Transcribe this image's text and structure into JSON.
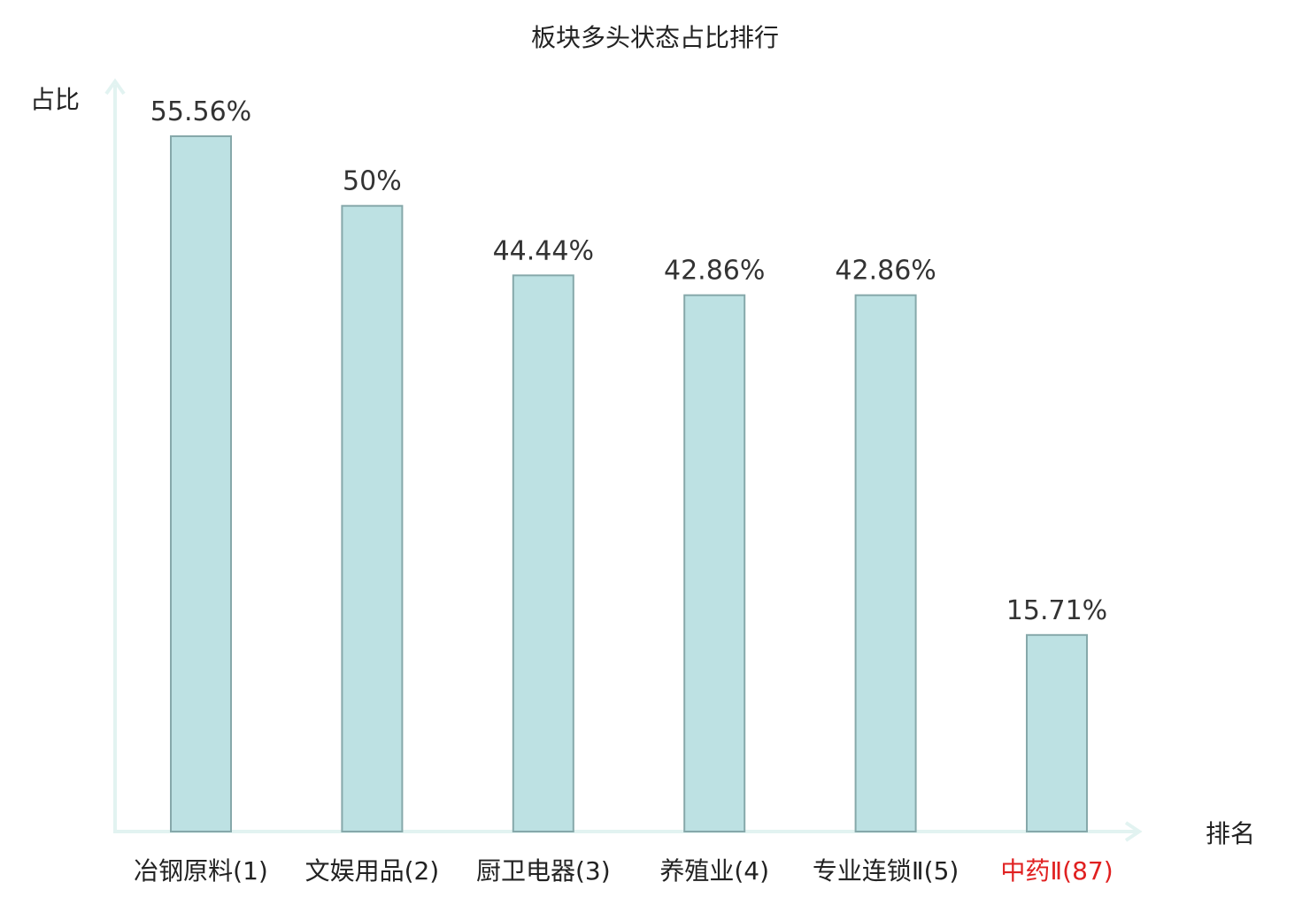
{
  "chart_data": {
    "type": "bar",
    "title": "板块多头状态占比排行",
    "ylabel": "占比",
    "xlabel": "排名",
    "categories": [
      {
        "label": "冶钢原料",
        "rank": "(1)"
      },
      {
        "label": "文娱用品",
        "rank": "(2)"
      },
      {
        "label": "厨卫电器",
        "rank": "(3)"
      },
      {
        "label": "养殖业",
        "rank": "(4)"
      },
      {
        "label": "专业连锁Ⅱ",
        "rank": "(5)"
      },
      {
        "label": "中药Ⅱ",
        "rank": "(87)"
      }
    ],
    "values": [
      55.56,
      50,
      44.44,
      42.86,
      42.86,
      15.71
    ],
    "value_labels": [
      "55.56%",
      "50%",
      "44.44%",
      "42.86%",
      "42.86%",
      "15.71%"
    ],
    "highlight_index": 5,
    "ylim": [
      0,
      60
    ],
    "grid": false,
    "legend": "none",
    "colors": {
      "bar_fill": "#bde1e3",
      "bar_stroke": "#86a8aa",
      "axis": "#e2f3f1",
      "text": "#222222",
      "value_text": "#333333",
      "highlight_text": "#e02020"
    }
  }
}
